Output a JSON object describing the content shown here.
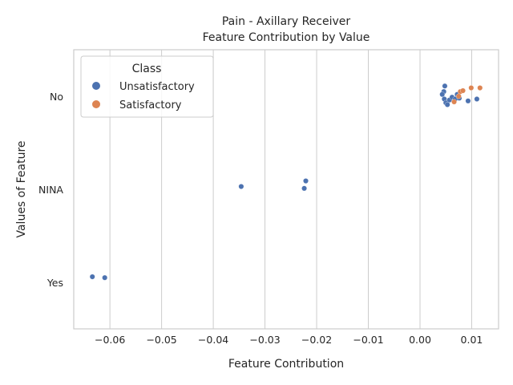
{
  "chart_data": {
    "type": "scatter",
    "title": "Pain - Axillary Receiver",
    "subtitle": "Feature Contribution by Value",
    "xlabel": "Feature Contribution",
    "ylabel": "Values of Feature",
    "xlim": [
      -0.067,
      0.0152
    ],
    "xticks": [
      -0.06,
      -0.05,
      -0.04,
      -0.03,
      -0.02,
      -0.01,
      0.0,
      0.01
    ],
    "xtick_labels": [
      "−0.06",
      "−0.05",
      "−0.04",
      "−0.03",
      "−0.02",
      "−0.01",
      "0.00",
      "0.01"
    ],
    "categories": [
      "No",
      "NINA",
      "Yes"
    ],
    "grid": "vertical",
    "legend": {
      "title": "Class",
      "placement": "top-left",
      "entries": [
        {
          "name": "Unsatisfactory",
          "color": "#4c72b0"
        },
        {
          "name": "Satisfactory",
          "color": "#dd8452"
        }
      ]
    },
    "series": [
      {
        "name": "Unsatisfactory",
        "color": "#4c72b0",
        "points": [
          {
            "x": 0.0048,
            "cat": "No",
            "jitter": -0.11
          },
          {
            "x": 0.0046,
            "cat": "No",
            "jitter": -0.05
          },
          {
            "x": 0.0043,
            "cat": "No",
            "jitter": -0.02
          },
          {
            "x": 0.0047,
            "cat": "No",
            "jitter": 0.03
          },
          {
            "x": 0.005,
            "cat": "No",
            "jitter": 0.07
          },
          {
            "x": 0.0053,
            "cat": "No",
            "jitter": 0.09
          },
          {
            "x": 0.0057,
            "cat": "No",
            "jitter": 0.04
          },
          {
            "x": 0.0062,
            "cat": "No",
            "jitter": 0.01
          },
          {
            "x": 0.0068,
            "cat": "No",
            "jitter": 0.03
          },
          {
            "x": 0.0072,
            "cat": "No",
            "jitter": -0.02
          },
          {
            "x": 0.0076,
            "cat": "No",
            "jitter": 0.02
          },
          {
            "x": 0.0093,
            "cat": "No",
            "jitter": 0.05
          },
          {
            "x": 0.011,
            "cat": "No",
            "jitter": 0.03
          },
          {
            "x": -0.0221,
            "cat": "NINA",
            "jitter": -0.09
          },
          {
            "x": -0.0224,
            "cat": "NINA",
            "jitter": -0.01
          },
          {
            "x": -0.0346,
            "cat": "NINA",
            "jitter": -0.03
          },
          {
            "x": -0.0634,
            "cat": "Yes",
            "jitter": -0.06
          },
          {
            "x": -0.061,
            "cat": "Yes",
            "jitter": -0.05
          }
        ]
      },
      {
        "name": "Satisfactory",
        "color": "#dd8452",
        "points": [
          {
            "x": 0.0078,
            "cat": "No",
            "jitter": -0.05
          },
          {
            "x": 0.0083,
            "cat": "No",
            "jitter": -0.06
          },
          {
            "x": 0.0099,
            "cat": "No",
            "jitter": -0.09
          },
          {
            "x": 0.0116,
            "cat": "No",
            "jitter": -0.09
          },
          {
            "x": 0.0066,
            "cat": "No",
            "jitter": 0.06
          },
          {
            "x": 0.0075,
            "cat": "No",
            "jitter": 0.0
          }
        ]
      }
    ]
  }
}
